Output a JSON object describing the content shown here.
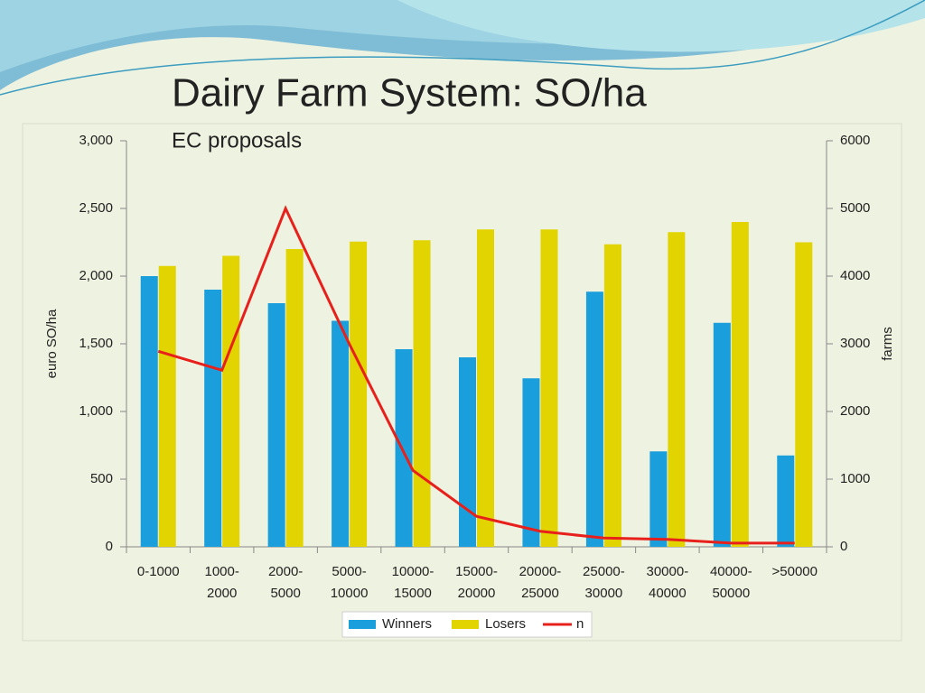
{
  "chart_data": {
    "type": "bar",
    "title": "Dairy Farm System: SO/ha",
    "subtitle": "EC proposals",
    "y_label": "euro SO/ha",
    "y2_label": "farms",
    "categories": [
      "0-1000",
      "1000-2000",
      "2000-5000",
      "5000-10000",
      "10000-15000",
      "15000-20000",
      "20000-25000",
      "25000-30000",
      "30000-40000",
      "40000-50000",
      ">50000"
    ],
    "series": [
      {
        "name": "Winners",
        "color": "#1a9fdc",
        "values": [
          2000,
          1900,
          1800,
          1670,
          1460,
          1400,
          1245,
          1885,
          705,
          1655,
          675
        ]
      },
      {
        "name": "Losers",
        "color": "#e2d400",
        "values": [
          2075,
          2150,
          2200,
          2255,
          2265,
          2345,
          2345,
          2235,
          2325,
          2400,
          2250
        ]
      },
      {
        "name": "n",
        "color": "#e8201c",
        "type": "line",
        "axis": "y2",
        "values": [
          2890,
          2610,
          5000,
          3000,
          1130,
          450,
          230,
          130,
          110,
          55,
          55
        ]
      }
    ],
    "ylim": [
      0,
      3000
    ],
    "yticks": [
      0,
      500,
      {
        "value": 1000,
        "label": "1,000"
      },
      {
        "value": 1500,
        "label": "1,500"
      },
      {
        "value": 2000,
        "label": "2,000"
      },
      {
        "value": 2500,
        "label": "2,500"
      },
      {
        "value": 3000,
        "label": "3,000"
      }
    ],
    "y2lim": [
      0,
      6000
    ],
    "y2ticks": [
      0,
      1000,
      2000,
      3000,
      4000,
      5000,
      6000
    ],
    "legend": "bottom"
  }
}
